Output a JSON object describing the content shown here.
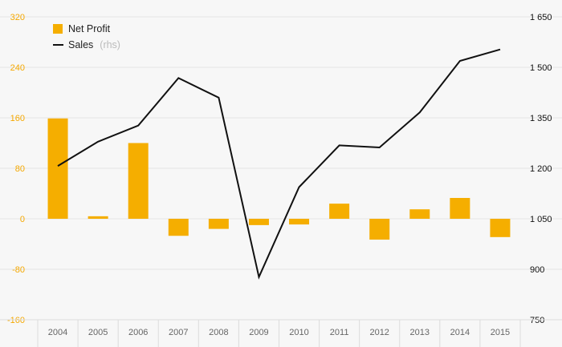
{
  "chart_data": {
    "type": "bar+line",
    "categories": [
      "2004",
      "2005",
      "2006",
      "2007",
      "2008",
      "2009",
      "2010",
      "2011",
      "2012",
      "2013",
      "2014",
      "2015"
    ],
    "series": [
      {
        "name": "Net Profit",
        "type": "bar",
        "axis": "left",
        "color": "#f5ae00",
        "values": [
          159,
          4,
          120,
          -27,
          -16,
          -10,
          -9,
          24,
          -33,
          15,
          33,
          -29
        ]
      },
      {
        "name": "Sales",
        "name_suffix": "(rhs)",
        "type": "line",
        "axis": "right",
        "color": "#111111",
        "values": [
          1207,
          1279,
          1327,
          1468,
          1410,
          877,
          1144,
          1268,
          1262,
          1366,
          1519,
          1553
        ]
      }
    ],
    "y_left": {
      "range": [
        -160,
        320
      ],
      "ticks": [
        -160,
        -80,
        0,
        80,
        160,
        240,
        320
      ],
      "tick_labels": [
        "-160",
        "-80",
        "0",
        "80",
        "160",
        "240",
        "320"
      ],
      "color": "#f5a800"
    },
    "y_right": {
      "range": [
        750,
        1650
      ],
      "ticks": [
        750,
        900,
        1050,
        1200,
        1350,
        1500,
        1650
      ],
      "tick_labels": [
        "750",
        "900",
        "1 050",
        "1 200",
        "1 350",
        "1 500",
        "1 650"
      ],
      "color": "#111111"
    },
    "legend": {
      "placement": "top-left",
      "items": [
        {
          "label": "Net Profit",
          "marker": "square",
          "color": "#f5ae00"
        },
        {
          "label": "Sales",
          "suffix": "(rhs)",
          "marker": "line",
          "color": "#111111"
        }
      ]
    },
    "grid": true
  }
}
